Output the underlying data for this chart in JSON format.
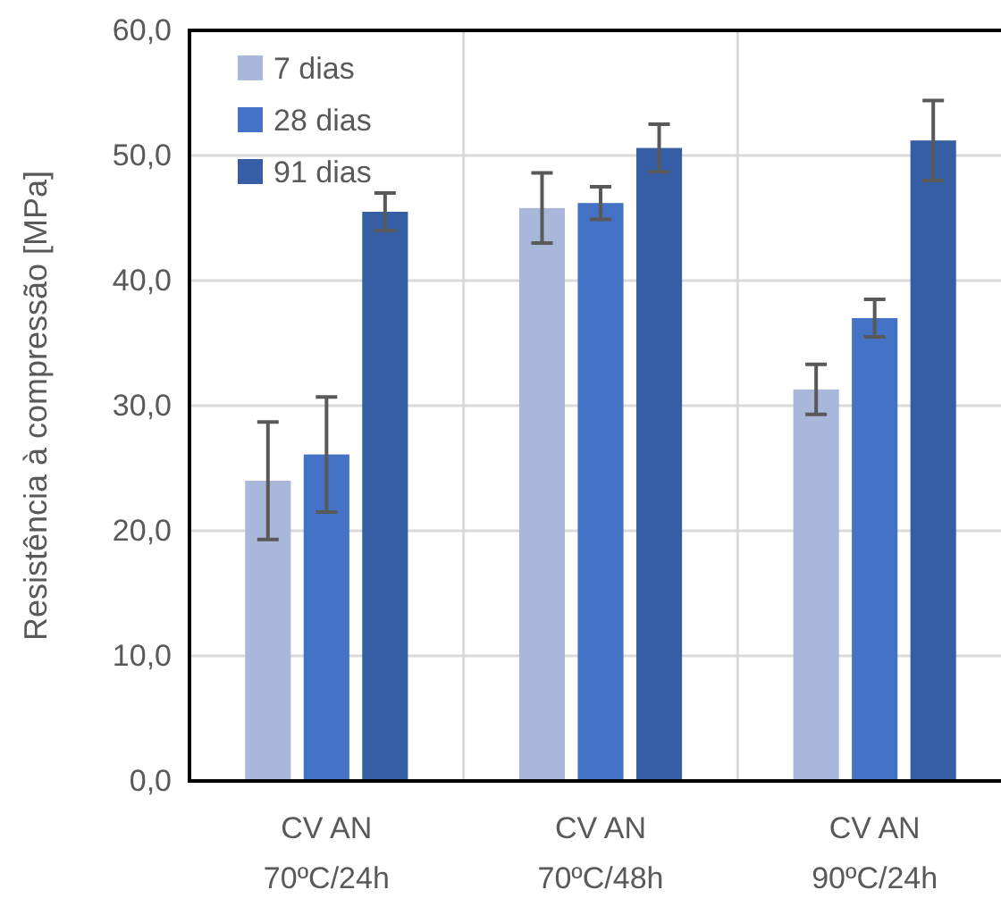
{
  "chart_data": {
    "type": "bar",
    "ylabel": "Resistência à compressão [MPa]",
    "categories": [
      "CV AN\n70ºC/24h",
      "CV AN\n70ºC/48h",
      "CV AN\n90ºC/24h"
    ],
    "series": [
      {
        "name": "7 dias",
        "color": "#a9b7db",
        "values": [
          24.0,
          45.8,
          31.3
        ],
        "errors": [
          4.7,
          2.8,
          2.0
        ]
      },
      {
        "name": "28 dias",
        "color": "#4472c4",
        "values": [
          26.1,
          46.2,
          37.0
        ],
        "errors": [
          4.6,
          1.3,
          1.5
        ]
      },
      {
        "name": "91 dias",
        "color": "#355ea4",
        "values": [
          45.5,
          50.6,
          51.2
        ],
        "errors": [
          1.5,
          1.9,
          3.2
        ]
      }
    ],
    "ylim": [
      0,
      60
    ],
    "yticks": [
      {
        "value": 0,
        "label": "0,0"
      },
      {
        "value": 10,
        "label": "10,0"
      },
      {
        "value": 20,
        "label": "20,0"
      },
      {
        "value": 30,
        "label": "30,0"
      },
      {
        "value": 40,
        "label": "40,0"
      },
      {
        "value": 50,
        "label": "50,0"
      },
      {
        "value": 60,
        "label": "60,0"
      }
    ],
    "grid": true,
    "legend": "top left"
  }
}
